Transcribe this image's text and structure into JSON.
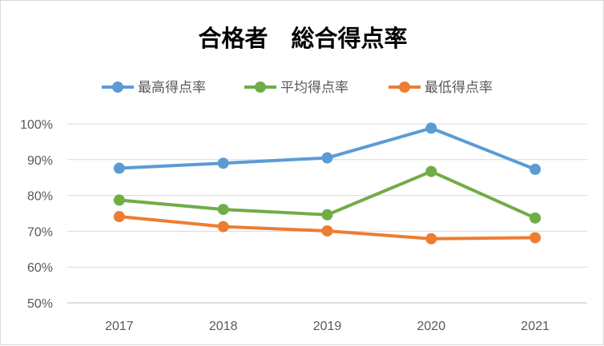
{
  "chart_data": {
    "type": "line",
    "title": "合格者　総合得点率",
    "xlabel": "",
    "ylabel": "",
    "categories": [
      "2017",
      "2018",
      "2019",
      "2020",
      "2021"
    ],
    "y_tick_labels": [
      "50%",
      "60%",
      "70%",
      "80%",
      "90%",
      "100%"
    ],
    "ylim": [
      50,
      100
    ],
    "y_unit": "%",
    "grid": true,
    "legend_position": "top",
    "series": [
      {
        "name": "最高得点率",
        "color": "#5b9bd5",
        "values": [
          87.6,
          89.0,
          90.5,
          98.8,
          87.3
        ]
      },
      {
        "name": "平均得点率",
        "color": "#70ad47",
        "values": [
          78.7,
          76.1,
          74.6,
          86.7,
          73.7
        ]
      },
      {
        "name": "最低得点率",
        "color": "#ed7d31",
        "values": [
          74.1,
          71.3,
          70.1,
          67.9,
          68.2
        ]
      }
    ]
  }
}
